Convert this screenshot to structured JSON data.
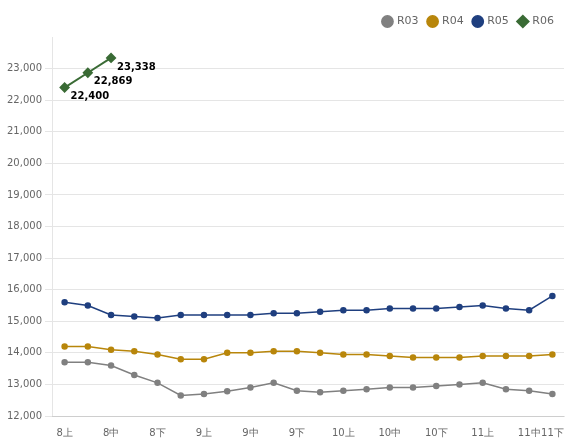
{
  "chart_data": {
    "type": "line",
    "categories": [
      "8上",
      null,
      "8中",
      null,
      "8下",
      null,
      "9上",
      null,
      "9中",
      null,
      "9下",
      null,
      "10上",
      null,
      "10中",
      null,
      "10下",
      null,
      "11上",
      null,
      "11中",
      "11下"
    ],
    "series": [
      {
        "name": "R03",
        "color": "#808080",
        "marker": "circle",
        "values": [
          13700,
          13700,
          13600,
          13300,
          13050,
          12650,
          12700,
          12780,
          12900,
          13050,
          12800,
          12750,
          12800,
          12850,
          12900,
          12900,
          12950,
          13000,
          13050,
          12850,
          12800,
          12700
        ]
      },
      {
        "name": "R04",
        "color": "#B8860B",
        "marker": "circle",
        "values": [
          14200,
          14200,
          14100,
          14050,
          13950,
          13800,
          13800,
          14000,
          14000,
          14050,
          14050,
          14000,
          13950,
          13950,
          13900,
          13850,
          13850,
          13850,
          13900,
          13900,
          13900,
          13950
        ]
      },
      {
        "name": "R05",
        "color": "#1F3F7F",
        "marker": "circle",
        "values": [
          15600,
          15500,
          15200,
          15150,
          15100,
          15200,
          15200,
          15200,
          15200,
          15250,
          15250,
          15300,
          15350,
          15350,
          15400,
          15400,
          15400,
          15450,
          15500,
          15400,
          15350,
          15800
        ]
      },
      {
        "name": "R06",
        "color": "#3A6B35",
        "marker": "diamond",
        "data_labels": true,
        "values": [
          22400,
          22869,
          23338,
          null,
          null,
          null,
          null,
          null,
          null,
          null,
          null,
          null,
          null,
          null,
          null,
          null,
          null,
          null,
          null,
          null,
          null,
          null
        ],
        "value_labels": [
          "22,400",
          "22,869",
          "23,338",
          null,
          null,
          null,
          null,
          null,
          null,
          null,
          null,
          null,
          null,
          null,
          null,
          null,
          null,
          null,
          null,
          null,
          null,
          null
        ]
      }
    ],
    "ylim": [
      12000,
      24000
    ],
    "yticks": [
      {
        "value": 12000,
        "label": "12,000"
      },
      {
        "value": 13000,
        "label": "13,000"
      },
      {
        "value": 14000,
        "label": "14,000"
      },
      {
        "value": 15000,
        "label": "15,000"
      },
      {
        "value": 16000,
        "label": "16,000"
      },
      {
        "value": 17000,
        "label": "17,000"
      },
      {
        "value": 18000,
        "label": "18,000"
      },
      {
        "value": 19000,
        "label": "19,000"
      },
      {
        "value": 20000,
        "label": "20,000"
      },
      {
        "value": 21000,
        "label": "21,000"
      },
      {
        "value": 22000,
        "label": "22,000"
      },
      {
        "value": 23000,
        "label": "23,000"
      }
    ],
    "grid": "y",
    "legend": "upper right"
  }
}
